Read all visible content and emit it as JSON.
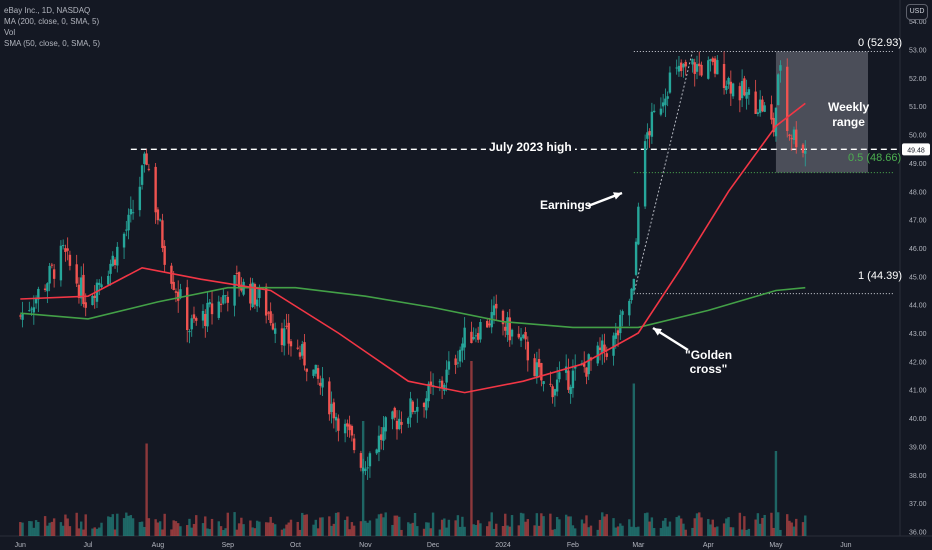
{
  "legend": {
    "line1": "eBay Inc., 1D, NASDAQ",
    "line2": "MA (200, close, 0, SMA, 5)",
    "line3": "Vol",
    "line4": "SMA (50, close, 0, SMA, 5)"
  },
  "currency_button": "USD",
  "annotations": {
    "july_high": "July 2023 high",
    "earnings": "Earnings",
    "golden_cross_1": "\"Golden",
    "golden_cross_2": "cross\"",
    "weekly_1": "Weekly",
    "weekly_2": "range",
    "fib_0": "0 (52.93)",
    "fib_05": "0.5 (48.66)",
    "fib_1": "1 (44.39)"
  },
  "colors": {
    "background": "#141823",
    "up": "#26a69a",
    "down": "#ef5350",
    "ma200": "#43a047",
    "sma50": "#f23645",
    "fib_05": "#4caf50",
    "last_price_label": "#ffffff"
  },
  "chart_data": {
    "type": "candlestick",
    "title": "eBay Inc., 1D, NASDAQ",
    "ylim": [
      35.7,
      54.5
    ],
    "y_ticks": [
      "36.00",
      "37.00",
      "38.00",
      "39.00",
      "40.00",
      "41.00",
      "42.00",
      "43.00",
      "44.00",
      "45.00",
      "46.00",
      "47.00",
      "48.00",
      "49.00",
      "50.00",
      "51.00",
      "52.00",
      "53.00",
      "54.00"
    ],
    "x_ticks": [
      "Jun",
      "Jul",
      "Aug",
      "Sep",
      "Oct",
      "Nov",
      "Dec",
      "2024",
      "Feb",
      "Mar",
      "Apr",
      "May",
      "Jun"
    ],
    "last_price": "49.48",
    "horizontal_levels": [
      {
        "label": "July 2023 high",
        "value": 49.48
      },
      {
        "label": "0 (52.93)",
        "value": 52.93
      },
      {
        "label": "0.5 (48.66)",
        "value": 48.66
      },
      {
        "label": "1 (44.39)",
        "value": 44.39
      }
    ],
    "price_keypoints": [
      [
        "2023-06-01",
        43.6
      ],
      [
        "2023-06-10",
        44.5
      ],
      [
        "2023-06-20",
        45.8
      ],
      [
        "2023-06-30",
        44.2
      ],
      [
        "2023-07-12",
        45.6
      ],
      [
        "2023-07-20",
        47.0
      ],
      [
        "2023-07-27",
        49.2
      ],
      [
        "2023-08-04",
        45.8
      ],
      [
        "2023-08-15",
        43.2
      ],
      [
        "2023-08-25",
        43.8
      ],
      [
        "2023-09-05",
        44.8
      ],
      [
        "2023-09-15",
        44.2
      ],
      [
        "2023-09-25",
        43.0
      ],
      [
        "2023-10-06",
        42.0
      ],
      [
        "2023-10-20",
        40.0
      ],
      [
        "2023-10-31",
        38.4
      ],
      [
        "2023-11-10",
        39.6
      ],
      [
        "2023-11-22",
        40.4
      ],
      [
        "2023-12-05",
        41.2
      ],
      [
        "2023-12-15",
        42.8
      ],
      [
        "2023-12-28",
        43.6
      ],
      [
        "2024-01-10",
        42.6
      ],
      [
        "2024-01-20",
        41.0
      ],
      [
        "2024-02-01",
        41.5
      ],
      [
        "2024-02-10",
        42.0
      ],
      [
        "2024-02-20",
        42.8
      ],
      [
        "2024-02-28",
        44.6
      ],
      [
        "2024-03-01",
        47.8
      ],
      [
        "2024-03-05",
        50.0
      ],
      [
        "2024-03-15",
        52.0
      ],
      [
        "2024-03-25",
        52.4
      ],
      [
        "2024-04-05",
        52.3
      ],
      [
        "2024-04-15",
        51.5
      ],
      [
        "2024-04-25",
        51.0
      ],
      [
        "2024-04-30",
        50.2
      ],
      [
        "2024-05-03",
        52.6
      ],
      [
        "2024-05-06",
        50.2
      ],
      [
        "2024-05-10",
        49.9
      ],
      [
        "2024-05-14",
        49.48
      ]
    ],
    "ma200_keypoints": [
      [
        "2023-06-01",
        43.7
      ],
      [
        "2023-07-01",
        43.5
      ],
      [
        "2023-08-01",
        44.1
      ],
      [
        "2023-09-01",
        44.6
      ],
      [
        "2023-10-01",
        44.6
      ],
      [
        "2023-11-01",
        44.3
      ],
      [
        "2023-12-01",
        43.9
      ],
      [
        "2024-01-01",
        43.4
      ],
      [
        "2024-02-01",
        43.2
      ],
      [
        "2024-03-01",
        43.2
      ],
      [
        "2024-04-01",
        43.8
      ],
      [
        "2024-05-01",
        44.5
      ],
      [
        "2024-05-14",
        44.6
      ]
    ],
    "sma50_keypoints": [
      [
        "2023-06-01",
        44.2
      ],
      [
        "2023-07-01",
        44.3
      ],
      [
        "2023-07-25",
        45.3
      ],
      [
        "2023-08-20",
        44.9
      ],
      [
        "2023-09-20",
        44.5
      ],
      [
        "2023-10-20",
        43.0
      ],
      [
        "2023-11-20",
        41.3
      ],
      [
        "2023-12-15",
        40.9
      ],
      [
        "2024-01-10",
        41.3
      ],
      [
        "2024-02-05",
        41.9
      ],
      [
        "2024-03-01",
        43.0
      ],
      [
        "2024-03-20",
        45.3
      ],
      [
        "2024-04-10",
        48.0
      ],
      [
        "2024-05-01",
        50.3
      ],
      [
        "2024-05-14",
        51.1
      ]
    ],
    "volume_spikes": [
      [
        "2023-07-27",
        0.45
      ],
      [
        "2023-10-31",
        0.6
      ],
      [
        "2023-12-18",
        1.0
      ],
      [
        "2024-02-28",
        0.85
      ],
      [
        "2024-05-01",
        0.4
      ]
    ]
  }
}
